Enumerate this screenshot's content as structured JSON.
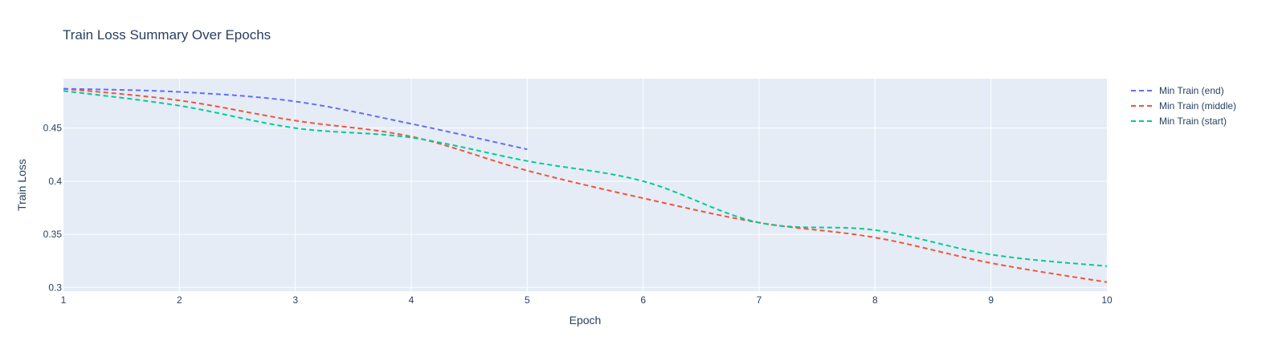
{
  "chart_data": {
    "type": "line",
    "title": "Train Loss Summary Over Epochs",
    "xlabel": "Epoch",
    "ylabel": "Train Loss",
    "xlim": [
      1,
      10
    ],
    "ylim": [
      0.2965,
      0.4965
    ],
    "x_ticks": [
      1,
      2,
      3,
      4,
      5,
      6,
      7,
      8,
      9,
      10
    ],
    "y_ticks": [
      0.3,
      0.35,
      0.4,
      0.45
    ],
    "y_tick_labels": [
      "0.3",
      "0.35",
      "0.4",
      "0.45"
    ],
    "grid": true,
    "legend_position": "top-right",
    "line_style": "dashed",
    "series": [
      {
        "name": "Min Train (end)",
        "color": "#636efa",
        "x": [
          1,
          2,
          3,
          4,
          5
        ],
        "values": [
          0.487,
          0.484,
          0.475,
          0.454,
          0.43
        ]
      },
      {
        "name": "Min Train (middle)",
        "color": "#ef553b",
        "x": [
          1,
          2,
          3,
          4,
          5,
          6,
          7,
          8,
          9,
          10
        ],
        "values": [
          0.487,
          0.476,
          0.457,
          0.442,
          0.41,
          0.384,
          0.361,
          0.347,
          0.323,
          0.305
        ]
      },
      {
        "name": "Min Train (start)",
        "color": "#00cc96",
        "x": [
          1,
          2,
          3,
          4,
          5,
          6,
          7,
          8,
          9,
          10
        ],
        "values": [
          0.485,
          0.471,
          0.45,
          0.441,
          0.419,
          0.4,
          0.361,
          0.354,
          0.331,
          0.32
        ]
      }
    ]
  }
}
